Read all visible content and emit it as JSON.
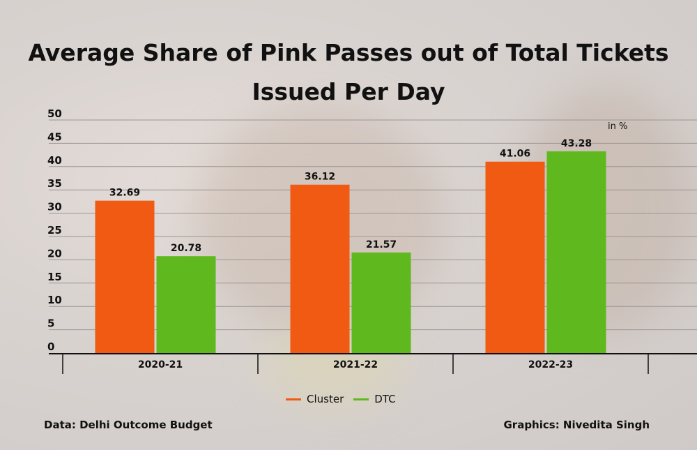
{
  "chart_data": {
    "type": "bar",
    "title": "Average Share of Pink Passes out of Total Tickets Issued Per Day",
    "unit_label": "in %",
    "categories": [
      "2020-21",
      "2021-22",
      "2022-23"
    ],
    "series": [
      {
        "name": "Cluster",
        "color": "#f05a12",
        "values": [
          32.69,
          36.12,
          41.06
        ]
      },
      {
        "name": "DTC",
        "color": "#5fb81e",
        "values": [
          20.78,
          21.57,
          43.28
        ]
      }
    ],
    "yticks": [
      0,
      5,
      10,
      15,
      20,
      25,
      30,
      35,
      40,
      45,
      50
    ],
    "ylim": [
      0,
      50
    ],
    "grid": true,
    "legend": "bottom-center"
  },
  "footer": {
    "source": "Data: Delhi Outcome Budget",
    "credit": "Graphics: Nivedita Singh"
  }
}
